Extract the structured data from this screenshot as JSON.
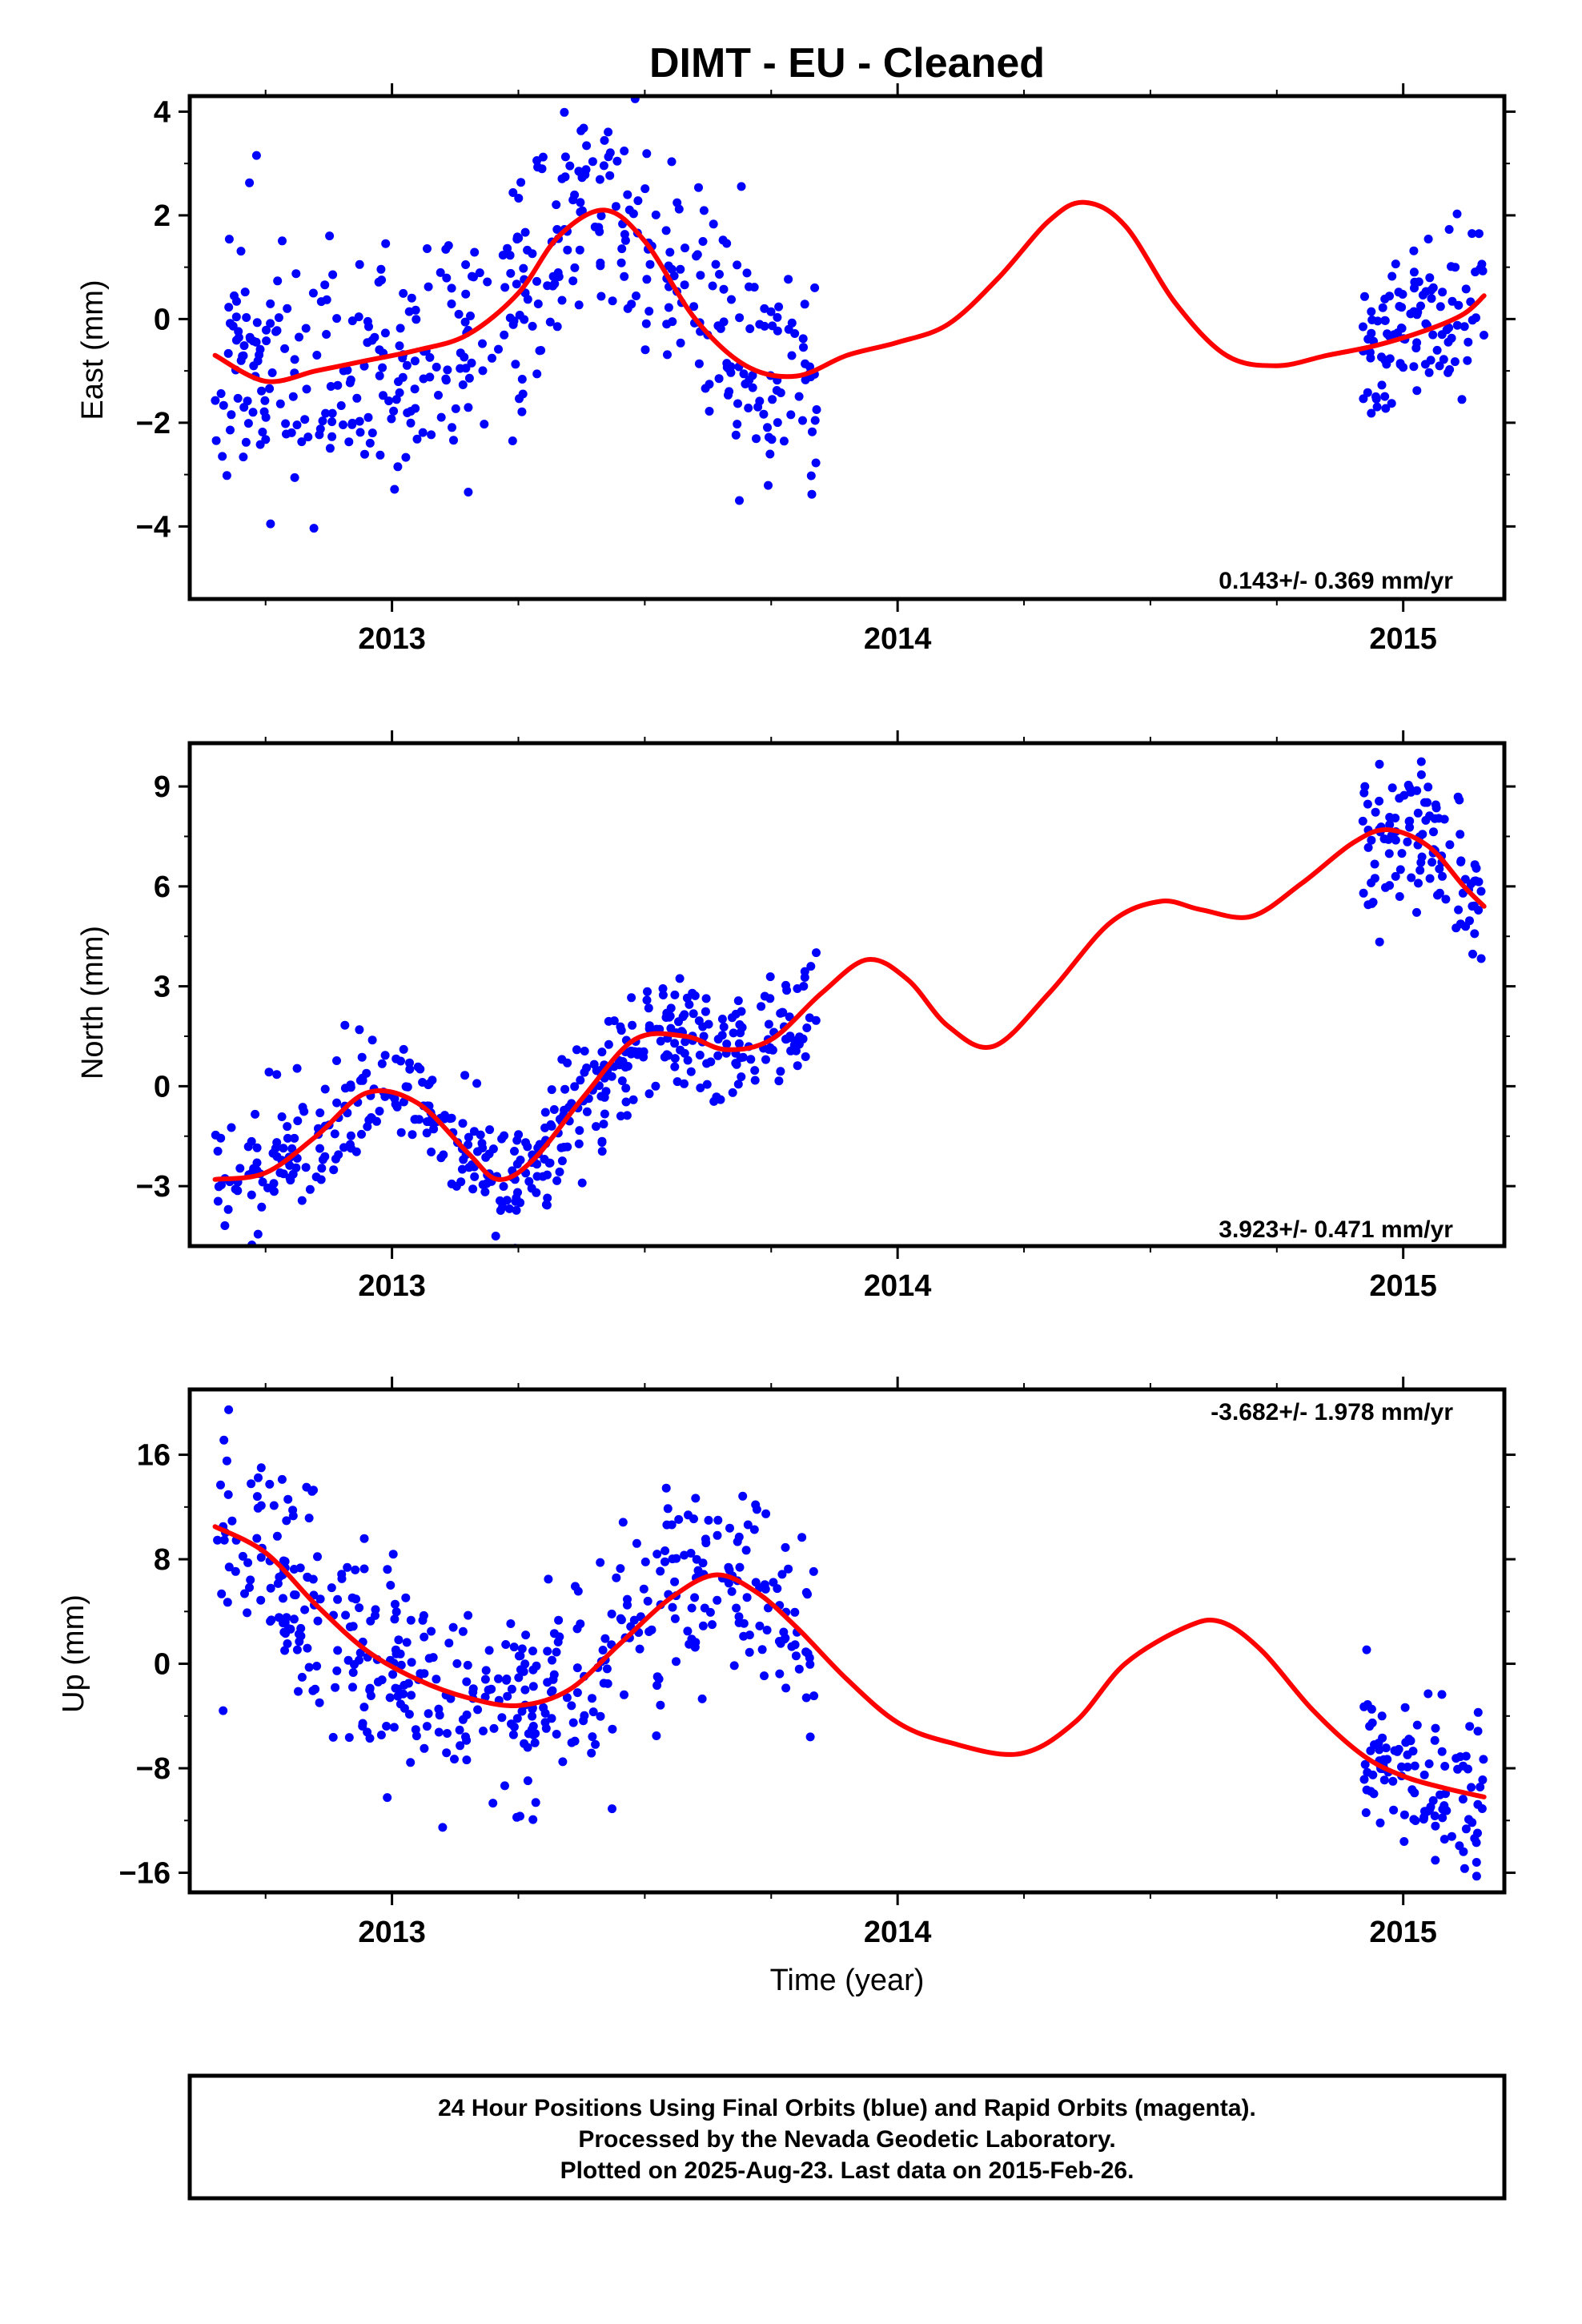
{
  "title": "DIMT  - EU - Cleaned",
  "xlabel": "Time (year)",
  "footer": {
    "line1": "24 Hour Positions Using Final Orbits (blue) and Rapid Orbits (magenta).",
    "line2": "Processed by the Nevada Geodetic Laboratory.",
    "line3": "Plotted on 2025-Aug-23. Last data on 2015-Feb-26."
  },
  "colors": {
    "points": "#0000ff",
    "model": "#ff0000",
    "frame": "#000000"
  },
  "chart_data": [
    {
      "type": "scatter",
      "name": "east",
      "ylabel": "East (mm)",
      "rate": "0.143+/- 0.369 mm/yr",
      "xlim": [
        2012.6,
        2015.2
      ],
      "ylim": [
        -5.4,
        4.3
      ],
      "xticks": [
        2013,
        2014,
        2015
      ],
      "yticks": [
        {
          "v": 4,
          "l": "4"
        },
        {
          "v": 2,
          "l": "2"
        },
        {
          "v": 0,
          "l": "0"
        },
        {
          "v": -2,
          "l": "−2"
        },
        {
          "v": -4,
          "l": "−4"
        }
      ],
      "model": [
        [
          2012.65,
          -0.7
        ],
        [
          2012.75,
          -1.2
        ],
        [
          2012.85,
          -1.0
        ],
        [
          2012.95,
          -0.8
        ],
        [
          2013.05,
          -0.6
        ],
        [
          2013.15,
          -0.3
        ],
        [
          2013.25,
          0.5
        ],
        [
          2013.33,
          1.6
        ],
        [
          2013.42,
          2.1
        ],
        [
          2013.5,
          1.5
        ],
        [
          2013.6,
          0.0
        ],
        [
          2013.7,
          -0.9
        ],
        [
          2013.8,
          -1.1
        ],
        [
          2013.9,
          -0.7
        ],
        [
          2014.0,
          -0.45
        ],
        [
          2014.1,
          -0.1
        ],
        [
          2014.2,
          0.8
        ],
        [
          2014.3,
          1.9
        ],
        [
          2014.37,
          2.25
        ],
        [
          2014.45,
          1.8
        ],
        [
          2014.55,
          0.3
        ],
        [
          2014.65,
          -0.7
        ],
        [
          2014.75,
          -0.9
        ],
        [
          2014.85,
          -0.7
        ],
        [
          2014.95,
          -0.5
        ],
        [
          2015.05,
          -0.2
        ],
        [
          2015.12,
          0.1
        ],
        [
          2015.16,
          0.45
        ]
      ],
      "segments": [
        {
          "x0": 2012.65,
          "x1": 2013.84,
          "n": 460,
          "noise": 1.2,
          "seed": 11
        },
        {
          "x0": 2014.92,
          "x1": 2015.16,
          "n": 110,
          "noise": 0.9,
          "seed": 12
        }
      ]
    },
    {
      "type": "scatter",
      "name": "north",
      "ylabel": "North (mm)",
      "rate": "3.923+/- 0.471 mm/yr",
      "xlim": [
        2012.6,
        2015.2
      ],
      "ylim": [
        -4.8,
        10.3
      ],
      "xticks": [
        2013,
        2014,
        2015
      ],
      "yticks": [
        {
          "v": 9,
          "l": "9"
        },
        {
          "v": 6,
          "l": "6"
        },
        {
          "v": 3,
          "l": "3"
        },
        {
          "v": 0,
          "l": "0"
        },
        {
          "v": -3,
          "l": "−3"
        }
      ],
      "model": [
        [
          2012.65,
          -2.8
        ],
        [
          2012.75,
          -2.6
        ],
        [
          2012.85,
          -1.5
        ],
        [
          2012.95,
          -0.2
        ],
        [
          2013.05,
          -0.5
        ],
        [
          2013.15,
          -2.0
        ],
        [
          2013.21,
          -2.8
        ],
        [
          2013.28,
          -2.2
        ],
        [
          2013.38,
          -0.3
        ],
        [
          2013.48,
          1.4
        ],
        [
          2013.58,
          1.5
        ],
        [
          2013.66,
          1.1
        ],
        [
          2013.75,
          1.4
        ],
        [
          2013.85,
          2.8
        ],
        [
          2013.94,
          3.8
        ],
        [
          2014.02,
          3.2
        ],
        [
          2014.1,
          1.8
        ],
        [
          2014.19,
          1.2
        ],
        [
          2014.3,
          2.8
        ],
        [
          2014.42,
          4.9
        ],
        [
          2014.52,
          5.55
        ],
        [
          2014.6,
          5.3
        ],
        [
          2014.7,
          5.1
        ],
        [
          2014.8,
          6.1
        ],
        [
          2014.9,
          7.3
        ],
        [
          2014.97,
          7.7
        ],
        [
          2015.05,
          7.2
        ],
        [
          2015.12,
          6.0
        ],
        [
          2015.16,
          5.4
        ]
      ],
      "segments": [
        {
          "x0": 2012.65,
          "x1": 2013.84,
          "n": 460,
          "noise": 0.9,
          "seed": 21
        },
        {
          "x0": 2014.92,
          "x1": 2015.16,
          "n": 110,
          "noise": 1.1,
          "seed": 22
        }
      ]
    },
    {
      "type": "scatter",
      "name": "up",
      "ylabel": "Up (mm)",
      "rate": "-3.682+/- 1.978 mm/yr",
      "xlim": [
        2012.6,
        2015.2
      ],
      "ylim": [
        -17.5,
        21
      ],
      "xticks": [
        2013,
        2014,
        2015
      ],
      "yticks": [
        {
          "v": 16,
          "l": "16"
        },
        {
          "v": 8,
          "l": "8"
        },
        {
          "v": 0,
          "l": "0"
        },
        {
          "v": -8,
          "l": "−8"
        },
        {
          "v": -16,
          "l": "−16"
        }
      ],
      "model": [
        [
          2012.65,
          10.5
        ],
        [
          2012.75,
          8.5
        ],
        [
          2012.85,
          4.5
        ],
        [
          2012.95,
          1.0
        ],
        [
          2013.05,
          -1.2
        ],
        [
          2013.15,
          -2.6
        ],
        [
          2013.25,
          -3.2
        ],
        [
          2013.35,
          -2.0
        ],
        [
          2013.45,
          1.5
        ],
        [
          2013.55,
          5.0
        ],
        [
          2013.64,
          6.8
        ],
        [
          2013.72,
          5.5
        ],
        [
          2013.8,
          2.8
        ],
        [
          2013.9,
          -1.2
        ],
        [
          2014.0,
          -4.5
        ],
        [
          2014.1,
          -6.0
        ],
        [
          2014.24,
          -6.9
        ],
        [
          2014.35,
          -4.5
        ],
        [
          2014.45,
          0.0
        ],
        [
          2014.57,
          2.8
        ],
        [
          2014.64,
          3.2
        ],
        [
          2014.72,
          1.0
        ],
        [
          2014.82,
          -3.5
        ],
        [
          2014.92,
          -7.0
        ],
        [
          2015.0,
          -8.6
        ],
        [
          2015.08,
          -9.5
        ],
        [
          2015.16,
          -10.2
        ]
      ],
      "segments": [
        {
          "x0": 2012.65,
          "x1": 2013.84,
          "n": 460,
          "noise": 4.0,
          "seed": 31
        },
        {
          "x0": 2014.92,
          "x1": 2015.16,
          "n": 110,
          "noise": 3.5,
          "seed": 32
        }
      ]
    }
  ]
}
